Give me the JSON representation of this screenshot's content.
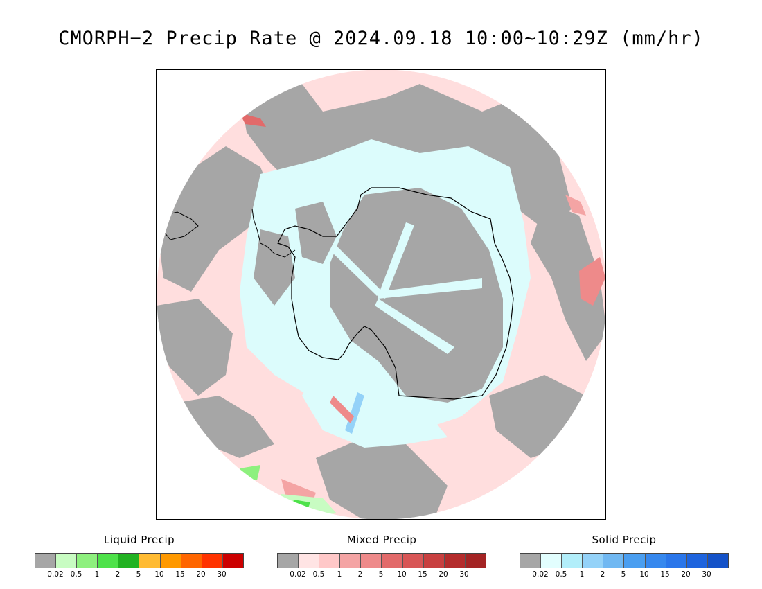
{
  "title": "CMORPH−2 Precip Rate @ 2024.09.18 10:00~10:29Z (mm/hr)",
  "map": {
    "projection": "south polar stereographic",
    "colors": {
      "frame_bg": "#ffffff",
      "no_precip": "#a6a6a6",
      "mixed_light": "#ffdede",
      "solid_light": "#dcfcfc",
      "coastline": "#000000"
    }
  },
  "legends": [
    {
      "id": "liquid",
      "title": "Liquid Precip",
      "colors": [
        "#a6a6a6",
        "#c8fcc2",
        "#8ef07e",
        "#4ee24a",
        "#22b222",
        "#ffbb33",
        "#ff9900",
        "#ff6600",
        "#ff3300",
        "#cc0000"
      ],
      "ticks": [
        "0.02",
        "0.5",
        "1",
        "2",
        "5",
        "10",
        "15",
        "20",
        "30"
      ]
    },
    {
      "id": "mixed",
      "title": "Mixed Precip",
      "colors": [
        "#a6a6a6",
        "#ffe4e4",
        "#ffc8c8",
        "#f4a4a4",
        "#ee8a8a",
        "#e26a6a",
        "#d85656",
        "#c84040",
        "#b42c2c",
        "#a42424"
      ],
      "ticks": [
        "0.02",
        "0.5",
        "1",
        "2",
        "5",
        "10",
        "15",
        "20",
        "30"
      ]
    },
    {
      "id": "solid",
      "title": "Solid Precip",
      "colors": [
        "#a6a6a6",
        "#e2fefe",
        "#b2eefa",
        "#94d2f8",
        "#70b8f2",
        "#4a9ef0",
        "#3688ee",
        "#2a76ea",
        "#1e64de",
        "#1452c8"
      ],
      "ticks": [
        "0.02",
        "0.5",
        "1",
        "2",
        "5",
        "10",
        "15",
        "20",
        "30"
      ]
    }
  ]
}
